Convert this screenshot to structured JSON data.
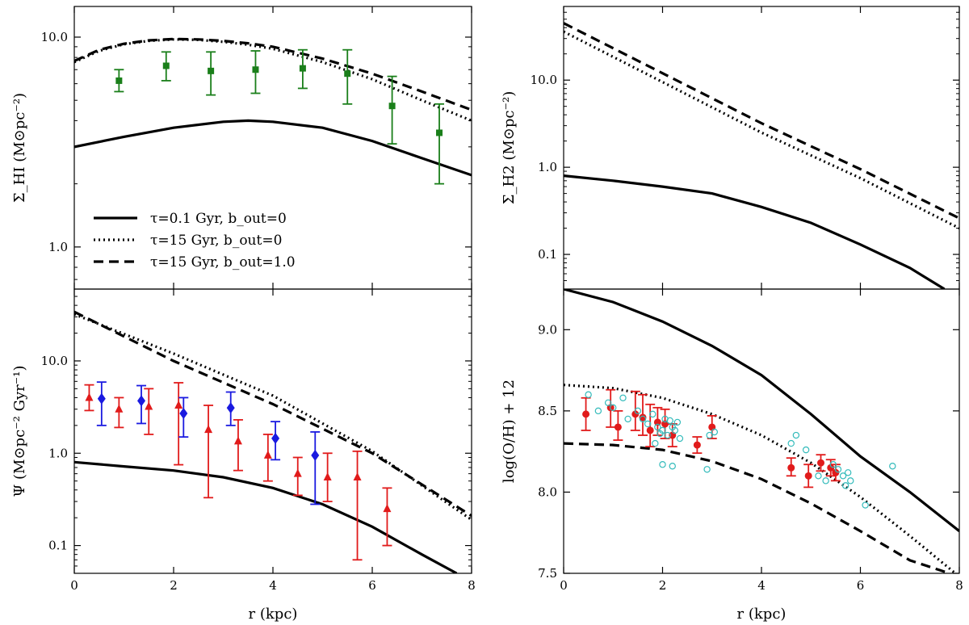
{
  "chart_data": [
    {
      "id": "hi",
      "type": "line",
      "ylabel": "Σ_HI (M⊙pc⁻²)",
      "xlabel": "",
      "xlim": [
        0,
        8
      ],
      "ylim": [
        0.63,
        14
      ],
      "yscale": "log",
      "yticks": [
        1.0,
        10.0
      ],
      "ytick_labels": [
        "1.0",
        "10.0"
      ],
      "grid": false,
      "legend_position": "lower-left",
      "series": [
        {
          "name": "τ=0.1 Gyr, b_out=0",
          "style": "solid",
          "color": "#000000",
          "x": [
            0,
            1,
            2,
            3,
            3.5,
            4,
            5,
            6,
            7,
            8
          ],
          "y": [
            3.0,
            3.35,
            3.7,
            3.95,
            4.0,
            3.95,
            3.7,
            3.2,
            2.65,
            2.2
          ]
        },
        {
          "name": "τ=15 Gyr, b_out=0",
          "style": "dotted",
          "color": "#000000",
          "x": [
            0,
            0.5,
            1,
            1.5,
            2,
            2.5,
            3,
            3.5,
            4,
            5,
            6,
            7,
            8
          ],
          "y": [
            7.6,
            8.6,
            9.25,
            9.6,
            9.75,
            9.7,
            9.5,
            9.2,
            8.8,
            7.6,
            6.3,
            5.0,
            4.0
          ]
        },
        {
          "name": "τ=15 Gyr, b_out=1.0",
          "style": "dashed",
          "color": "#000000",
          "x": [
            0,
            0.5,
            1,
            1.5,
            2,
            2.5,
            3,
            3.5,
            4,
            5,
            6,
            7,
            8
          ],
          "y": [
            7.7,
            8.7,
            9.3,
            9.65,
            9.8,
            9.75,
            9.6,
            9.35,
            9.0,
            7.9,
            6.7,
            5.5,
            4.5
          ]
        },
        {
          "name": "",
          "style": "points",
          "marker": "square",
          "color": "#1a7f1a",
          "x": [
            0.9,
            1.85,
            2.75,
            3.65,
            4.6,
            5.5,
            6.4,
            7.35
          ],
          "y": [
            6.2,
            7.3,
            6.9,
            7.0,
            7.1,
            6.7,
            4.7,
            3.5
          ],
          "yerr_low": [
            5.5,
            6.2,
            5.3,
            5.4,
            5.7,
            4.8,
            3.1,
            2.0
          ],
          "yerr_high": [
            7.0,
            8.5,
            8.5,
            8.6,
            8.7,
            8.7,
            6.5,
            4.8
          ]
        }
      ]
    },
    {
      "id": "h2",
      "type": "line",
      "ylabel": "Σ_H2 (M⊙pc⁻²)",
      "xlabel": "",
      "xlim": [
        0,
        8
      ],
      "ylim": [
        0.04,
        70
      ],
      "yscale": "log",
      "yticks": [
        0.1,
        1.0,
        10.0
      ],
      "ytick_labels": [
        "0.1",
        "1.0",
        "10.0"
      ],
      "grid": false,
      "series": [
        {
          "name": "τ=0.1 Gyr, b_out=0",
          "style": "solid",
          "color": "#000000",
          "x": [
            0,
            1,
            2,
            3,
            4,
            5,
            6,
            7,
            7.7
          ],
          "y": [
            0.8,
            0.7,
            0.6,
            0.5,
            0.35,
            0.23,
            0.13,
            0.07,
            0.04
          ]
        },
        {
          "name": "τ=15 Gyr, b_out=0",
          "style": "dotted",
          "color": "#000000",
          "x": [
            0,
            2,
            4,
            6,
            8
          ],
          "y": [
            36,
            9.5,
            2.5,
            0.75,
            0.2
          ]
        },
        {
          "name": "τ=15 Gyr, b_out=1.0",
          "style": "dashed",
          "color": "#000000",
          "x": [
            0,
            2,
            4,
            6,
            8
          ],
          "y": [
            45,
            12,
            3.2,
            0.95,
            0.26
          ]
        }
      ]
    },
    {
      "id": "sfr",
      "type": "line",
      "ylabel": "Ψ (M⊙pc⁻² Gyr⁻¹)",
      "xlabel": "r (kpc)",
      "xlim": [
        0,
        8
      ],
      "ylim": [
        0.05,
        60
      ],
      "yscale": "log",
      "yticks": [
        0.1,
        1.0,
        10.0
      ],
      "ytick_labels": [
        "0.1",
        "1.0",
        "10.0"
      ],
      "xticks": [
        0,
        2,
        4,
        6,
        8
      ],
      "xtick_labels": [
        "0",
        "2",
        "4",
        "6",
        "8"
      ],
      "grid": false,
      "series": [
        {
          "name": "τ=0.1 Gyr, b_out=0",
          "style": "solid",
          "color": "#000000",
          "x": [
            0,
            1,
            2,
            3,
            4,
            5,
            6,
            7,
            7.7
          ],
          "y": [
            0.8,
            0.72,
            0.65,
            0.55,
            0.42,
            0.28,
            0.16,
            0.08,
            0.05
          ]
        },
        {
          "name": "τ=15 Gyr, b_out=0",
          "style": "dotted",
          "color": "#000000",
          "x": [
            0,
            2,
            4,
            6,
            8
          ],
          "y": [
            32,
            12,
            4.2,
            1.05,
            0.19
          ]
        },
        {
          "name": "τ=15 Gyr, b_out=1.0",
          "style": "dashed",
          "color": "#000000",
          "x": [
            0,
            2,
            4,
            6,
            8
          ],
          "y": [
            34,
            10,
            3.4,
            1.0,
            0.21
          ]
        },
        {
          "name": "",
          "style": "points",
          "marker": "triangle",
          "color": "#e11b1b",
          "x": [
            0.3,
            0.9,
            1.5,
            2.1,
            2.7,
            3.3,
            3.9,
            4.5,
            5.1,
            5.7,
            6.3
          ],
          "y": [
            4.0,
            3.0,
            3.2,
            3.3,
            1.8,
            1.35,
            0.95,
            0.6,
            0.55,
            0.55,
            0.25
          ],
          "yerr_low": [
            2.9,
            1.9,
            1.6,
            0.75,
            0.33,
            0.65,
            0.5,
            0.35,
            0.3,
            0.07,
            0.1
          ],
          "yerr_high": [
            5.5,
            4.0,
            5.0,
            5.8,
            3.3,
            2.3,
            1.6,
            0.9,
            1.0,
            1.05,
            0.42
          ]
        },
        {
          "name": "",
          "style": "points",
          "marker": "diamond",
          "color": "#1a1ae0",
          "x": [
            0.55,
            1.35,
            2.2,
            3.15,
            4.05,
            4.85
          ],
          "y": [
            3.9,
            3.7,
            2.7,
            3.1,
            1.45,
            0.95
          ],
          "yerr_low": [
            2.0,
            2.1,
            1.5,
            2.0,
            0.85,
            0.28
          ],
          "yerr_high": [
            5.9,
            5.4,
            4.0,
            4.6,
            2.2,
            1.7
          ]
        }
      ]
    },
    {
      "id": "oh",
      "type": "line",
      "ylabel": "log(O/H) + 12",
      "xlabel": "r (kpc)",
      "xlim": [
        0,
        8
      ],
      "ylim": [
        7.5,
        9.25
      ],
      "yscale": "linear",
      "yticks": [
        7.5,
        8.0,
        8.5,
        9.0
      ],
      "ytick_labels": [
        "7.5",
        "8.0",
        "8.5",
        "9.0"
      ],
      "xticks": [
        0,
        2,
        4,
        6,
        8
      ],
      "xtick_labels": [
        "0",
        "2",
        "4",
        "6",
        "8"
      ],
      "grid": false,
      "series": [
        {
          "name": "τ=0.1 Gyr, b_out=0",
          "style": "solid",
          "color": "#000000",
          "x": [
            0,
            1,
            2,
            3,
            4,
            5,
            6,
            7,
            8
          ],
          "y": [
            9.25,
            9.17,
            9.05,
            8.9,
            8.72,
            8.48,
            8.22,
            8.0,
            7.76
          ]
        },
        {
          "name": "τ=15 Gyr, b_out=0",
          "style": "dotted",
          "color": "#000000",
          "x": [
            0,
            1,
            2,
            3,
            4,
            5,
            6,
            7,
            8
          ],
          "y": [
            8.66,
            8.64,
            8.58,
            8.48,
            8.35,
            8.18,
            7.97,
            7.73,
            7.48
          ]
        },
        {
          "name": "τ=15 Gyr, b_out=1.0",
          "style": "dashed",
          "color": "#000000",
          "x": [
            0,
            1,
            2,
            3,
            4,
            5,
            6,
            7,
            7.8
          ],
          "y": [
            8.3,
            8.29,
            8.26,
            8.19,
            8.08,
            7.93,
            7.76,
            7.58,
            7.5
          ]
        },
        {
          "name": "",
          "style": "points",
          "marker": "circle",
          "color": "#e11b1b",
          "x": [
            0.45,
            0.95,
            1.1,
            1.45,
            1.6,
            1.75,
            1.9,
            2.05,
            2.2,
            2.7,
            3.0,
            4.6,
            4.95,
            5.2,
            5.4,
            5.5
          ],
          "y": [
            8.48,
            8.52,
            8.4,
            8.48,
            8.46,
            8.38,
            8.43,
            8.42,
            8.35,
            8.29,
            8.4,
            8.15,
            8.1,
            8.18,
            8.15,
            8.12
          ],
          "yerr_low": [
            8.38,
            8.4,
            8.32,
            8.38,
            8.35,
            8.28,
            8.35,
            8.33,
            8.28,
            8.24,
            8.33,
            8.1,
            8.03,
            8.13,
            8.1,
            8.07
          ],
          "yerr_high": [
            8.58,
            8.63,
            8.5,
            8.62,
            8.6,
            8.54,
            8.52,
            8.51,
            8.42,
            8.34,
            8.47,
            8.21,
            8.17,
            8.23,
            8.2,
            8.17
          ]
        },
        {
          "name": "",
          "style": "points",
          "marker": "open-circle",
          "color": "#33bbbb",
          "x": [
            0.5,
            0.7,
            0.9,
            1.0,
            1.2,
            1.3,
            1.5,
            1.6,
            1.7,
            1.8,
            1.9,
            2.0,
            2.05,
            2.1,
            2.15,
            2.2,
            2.25,
            2.3,
            2.35,
            1.85,
            1.95,
            2.0,
            2.2,
            2.9,
            2.95,
            3.05,
            4.6,
            4.7,
            4.9,
            5.15,
            5.3,
            5.45,
            5.55,
            5.65,
            5.7,
            5.75,
            5.8,
            6.1,
            6.65
          ],
          "y": [
            8.6,
            8.5,
            8.55,
            8.52,
            8.58,
            8.45,
            8.5,
            8.45,
            8.42,
            8.48,
            8.4,
            8.38,
            8.45,
            8.35,
            8.44,
            8.4,
            8.38,
            8.43,
            8.33,
            8.3,
            8.36,
            8.17,
            8.16,
            8.14,
            8.35,
            8.37,
            8.3,
            8.35,
            8.26,
            8.1,
            8.07,
            8.17,
            8.14,
            8.1,
            8.04,
            8.12,
            8.07,
            7.92,
            8.16
          ]
        }
      ]
    }
  ]
}
